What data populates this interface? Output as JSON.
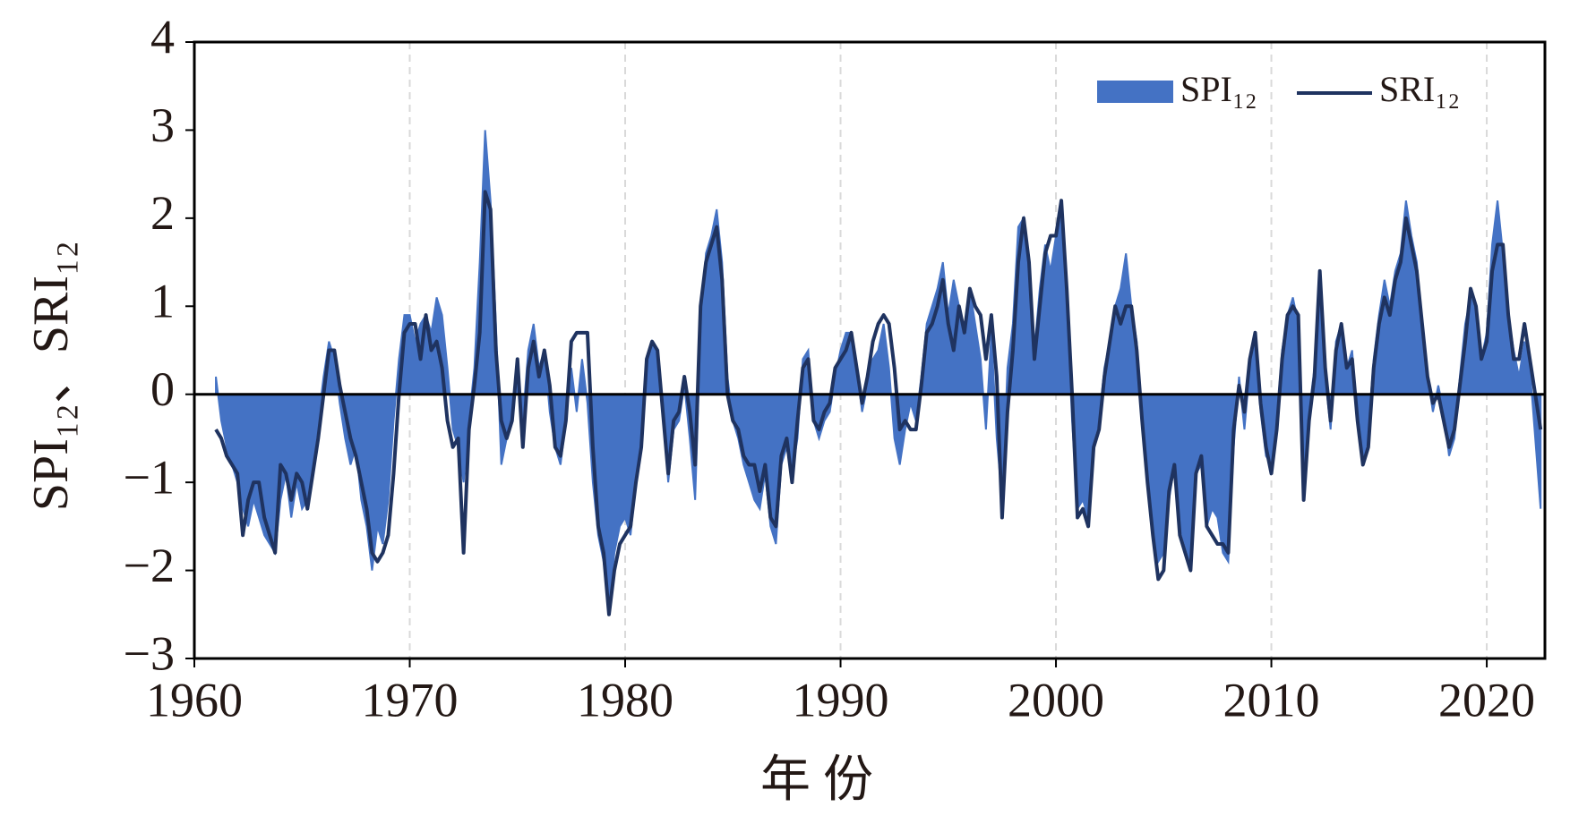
{
  "chart_data": {
    "type": "area-line",
    "y_label": "SPI₁₂、SRI₁₂",
    "x_label": "年 份",
    "xlim": [
      1960,
      2022.7
    ],
    "xticks": [
      1960,
      1970,
      1980,
      1990,
      2000,
      2010,
      2020
    ],
    "ylim": [
      -3,
      4
    ],
    "yticks": [
      {
        "value": -3,
        "label": "−3"
      },
      {
        "value": -2,
        "label": "−2"
      },
      {
        "value": -1,
        "label": "−1"
      },
      0,
      1,
      2,
      3,
      4
    ],
    "grid": true,
    "x": [
      1961,
      1961.25,
      1961.5,
      1961.75,
      1962,
      1962.25,
      1962.5,
      1962.75,
      1963,
      1963.25,
      1963.5,
      1963.75,
      1964,
      1964.25,
      1964.5,
      1964.75,
      1965,
      1965.25,
      1965.5,
      1965.75,
      1966,
      1966.25,
      1966.5,
      1966.75,
      1967,
      1967.25,
      1967.5,
      1967.75,
      1968,
      1968.25,
      1968.5,
      1968.75,
      1969,
      1969.25,
      1969.5,
      1969.75,
      1970,
      1970.25,
      1970.5,
      1970.75,
      1971,
      1971.25,
      1971.5,
      1971.75,
      1972,
      1972.25,
      1972.5,
      1972.75,
      1973,
      1973.25,
      1973.5,
      1973.75,
      1974,
      1974.25,
      1974.5,
      1974.75,
      1975,
      1975.25,
      1975.5,
      1975.75,
      1976,
      1976.25,
      1976.5,
      1976.75,
      1977,
      1977.25,
      1977.5,
      1977.75,
      1978,
      1978.25,
      1978.5,
      1978.75,
      1979,
      1979.25,
      1979.5,
      1979.75,
      1980,
      1980.25,
      1980.5,
      1980.75,
      1981,
      1981.25,
      1981.5,
      1981.75,
      1982,
      1982.25,
      1982.5,
      1982.75,
      1983,
      1983.25,
      1983.5,
      1983.75,
      1984,
      1984.25,
      1984.5,
      1984.75,
      1985,
      1985.25,
      1985.5,
      1985.75,
      1986,
      1986.25,
      1986.5,
      1986.75,
      1987,
      1987.25,
      1987.5,
      1987.75,
      1988,
      1988.25,
      1988.5,
      1988.75,
      1989,
      1989.25,
      1989.5,
      1989.75,
      1990,
      1990.25,
      1990.5,
      1990.75,
      1991,
      1991.25,
      1991.5,
      1991.75,
      1992,
      1992.25,
      1992.5,
      1992.75,
      1993,
      1993.25,
      1993.5,
      1993.75,
      1994,
      1994.25,
      1994.5,
      1994.75,
      1995,
      1995.25,
      1995.5,
      1995.75,
      1996,
      1996.25,
      1996.5,
      1996.75,
      1997,
      1997.25,
      1997.5,
      1997.75,
      1998,
      1998.25,
      1998.5,
      1998.75,
      1999,
      1999.25,
      1999.5,
      1999.75,
      2000,
      2000.25,
      2000.5,
      2000.75,
      2001,
      2001.25,
      2001.5,
      2001.75,
      2002,
      2002.25,
      2002.5,
      2002.75,
      2003,
      2003.25,
      2003.5,
      2003.75,
      2004,
      2004.25,
      2004.5,
      2004.75,
      2005,
      2005.25,
      2005.5,
      2005.75,
      2006,
      2006.25,
      2006.5,
      2006.75,
      2007,
      2007.25,
      2007.5,
      2007.75,
      2008,
      2008.25,
      2008.5,
      2008.75,
      2009,
      2009.25,
      2009.5,
      2009.75,
      2010,
      2010.25,
      2010.5,
      2010.75,
      2011,
      2011.25,
      2011.5,
      2011.75,
      2012,
      2012.25,
      2012.5,
      2012.75,
      2013,
      2013.25,
      2013.5,
      2013.75,
      2014,
      2014.25,
      2014.5,
      2014.75,
      2015,
      2015.25,
      2015.5,
      2015.75,
      2016,
      2016.25,
      2016.5,
      2016.75,
      2017,
      2017.25,
      2017.5,
      2017.75,
      2018,
      2018.25,
      2018.5,
      2018.75,
      2019,
      2019.25,
      2019.5,
      2019.75,
      2020,
      2020.25,
      2020.5,
      2020.75,
      2021,
      2021.25,
      2021.5,
      2021.75,
      2022,
      2022.5
    ],
    "series": [
      {
        "name": "SPI₁₂",
        "color": "#4472c4",
        "values": [
          0.2,
          -0.3,
          -0.6,
          -0.8,
          -1.0,
          -1.3,
          -1.5,
          -1.2,
          -1.4,
          -1.6,
          -1.7,
          -1.8,
          -1.2,
          -0.9,
          -1.4,
          -1.0,
          -1.3,
          -1.2,
          -0.8,
          -0.3,
          0.2,
          0.6,
          0.4,
          -0.1,
          -0.5,
          -0.8,
          -0.6,
          -1.2,
          -1.5,
          -2.0,
          -1.5,
          -1.7,
          -1.2,
          -0.3,
          0.4,
          0.9,
          0.9,
          0.6,
          0.8,
          0.9,
          0.7,
          1.1,
          0.9,
          0.3,
          -0.4,
          -0.6,
          -1.0,
          -0.3,
          0.3,
          1.5,
          3.0,
          2.2,
          0.8,
          -0.8,
          -0.5,
          -0.2,
          0.3,
          -0.3,
          0.5,
          0.8,
          0.3,
          0.5,
          -0.2,
          -0.6,
          -0.8,
          -0.3,
          0.3,
          -0.2,
          0.4,
          -0.1,
          -1.0,
          -1.6,
          -1.9,
          -2.4,
          -1.8,
          -1.5,
          -1.4,
          -1.6,
          -1.0,
          -0.6,
          0.4,
          0.6,
          0.5,
          -0.2,
          -1.0,
          -0.4,
          -0.3,
          0.1,
          -0.5,
          -1.2,
          0.7,
          1.6,
          1.8,
          2.1,
          1.5,
          0.2,
          -0.3,
          -0.5,
          -0.8,
          -1.0,
          -1.2,
          -1.3,
          -0.9,
          -1.5,
          -1.7,
          -0.8,
          -0.6,
          -0.9,
          -0.5,
          0.4,
          0.5,
          -0.3,
          -0.5,
          -0.3,
          -0.2,
          0.2,
          0.5,
          0.7,
          0.7,
          0.3,
          -0.2,
          0.1,
          0.4,
          0.5,
          0.8,
          0.3,
          -0.5,
          -0.8,
          -0.4,
          -0.1,
          -0.3,
          0.2,
          0.8,
          1.0,
          1.2,
          1.5,
          0.9,
          1.3,
          1.0,
          0.6,
          1.2,
          0.8,
          0.4,
          -0.4,
          0.7,
          -0.5,
          -1.2,
          0.3,
          0.8,
          1.9,
          2.0,
          1.4,
          0.5,
          1.2,
          1.7,
          1.4,
          1.8,
          2.0,
          1.0,
          -0.3,
          -1.3,
          -1.2,
          -1.4,
          -0.5,
          -0.3,
          0.3,
          0.6,
          1.0,
          1.2,
          1.6,
          1.0,
          0.6,
          -0.3,
          -0.8,
          -1.4,
          -1.9,
          -1.8,
          -1.2,
          -0.8,
          -1.5,
          -1.7,
          -1.9,
          -0.9,
          -0.8,
          -1.5,
          -1.3,
          -1.4,
          -1.8,
          -1.9,
          -0.6,
          0.2,
          -0.4,
          0.3,
          0.6,
          -0.2,
          -0.7,
          -0.8,
          -0.3,
          0.5,
          0.9,
          1.1,
          0.8,
          -0.9,
          -0.2,
          0.3,
          1.4,
          0.2,
          -0.4,
          0.6,
          0.8,
          0.3,
          0.5,
          -0.3,
          -0.8,
          -0.4,
          0.4,
          0.9,
          1.3,
          1.0,
          1.4,
          1.6,
          2.2,
          1.8,
          1.5,
          0.8,
          0.2,
          -0.2,
          0.1,
          -0.2,
          -0.7,
          -0.5,
          0.2,
          0.8,
          1.1,
          0.9,
          0.4,
          0.7,
          1.7,
          2.2,
          1.6,
          0.9,
          0.5,
          0.2,
          0.6,
          0.3,
          -1.3
        ]
      },
      {
        "name": "SRI₁₂",
        "color": "#1f3360",
        "values": [
          -0.4,
          -0.5,
          -0.7,
          -0.8,
          -0.9,
          -1.6,
          -1.2,
          -1.0,
          -1.0,
          -1.4,
          -1.6,
          -1.8,
          -0.8,
          -0.9,
          -1.2,
          -0.9,
          -1.0,
          -1.3,
          -0.9,
          -0.5,
          0.0,
          0.5,
          0.5,
          0.1,
          -0.2,
          -0.5,
          -0.7,
          -1.0,
          -1.3,
          -1.8,
          -1.9,
          -1.8,
          -1.6,
          -0.9,
          0.0,
          0.7,
          0.8,
          0.8,
          0.4,
          0.9,
          0.5,
          0.6,
          0.3,
          -0.3,
          -0.6,
          -0.5,
          -1.8,
          -0.4,
          0.1,
          0.7,
          2.3,
          2.1,
          0.5,
          -0.3,
          -0.5,
          -0.3,
          0.4,
          -0.6,
          0.3,
          0.6,
          0.2,
          0.5,
          0.1,
          -0.6,
          -0.7,
          -0.3,
          0.6,
          0.7,
          0.7,
          0.7,
          -0.6,
          -1.5,
          -1.8,
          -2.5,
          -2.0,
          -1.7,
          -1.6,
          -1.5,
          -1.0,
          -0.6,
          0.4,
          0.6,
          0.5,
          -0.2,
          -0.9,
          -0.3,
          -0.2,
          0.2,
          -0.2,
          -0.8,
          1.0,
          1.5,
          1.7,
          1.9,
          1.3,
          0.0,
          -0.3,
          -0.4,
          -0.7,
          -0.8,
          -0.8,
          -1.1,
          -0.8,
          -1.4,
          -1.5,
          -0.7,
          -0.5,
          -1.0,
          -0.3,
          0.3,
          0.4,
          -0.3,
          -0.4,
          -0.2,
          -0.1,
          0.3,
          0.4,
          0.5,
          0.7,
          0.3,
          -0.1,
          0.2,
          0.6,
          0.8,
          0.9,
          0.8,
          0.3,
          -0.4,
          -0.3,
          -0.4,
          -0.4,
          0.1,
          0.7,
          0.8,
          1.0,
          1.3,
          0.8,
          0.5,
          1.0,
          0.7,
          1.2,
          1.0,
          0.9,
          0.4,
          0.9,
          0.2,
          -1.4,
          -0.2,
          0.5,
          1.5,
          2.0,
          1.5,
          0.4,
          1.0,
          1.6,
          1.8,
          1.8,
          2.2,
          1.2,
          0.0,
          -1.4,
          -1.3,
          -1.5,
          -0.6,
          -0.4,
          0.2,
          0.6,
          1.0,
          0.8,
          1.0,
          1.0,
          0.5,
          -0.3,
          -1.0,
          -1.6,
          -2.1,
          -2.0,
          -1.1,
          -0.8,
          -1.6,
          -1.8,
          -2.0,
          -0.9,
          -0.7,
          -1.5,
          -1.6,
          -1.7,
          -1.7,
          -1.8,
          -0.4,
          0.1,
          -0.2,
          0.4,
          0.7,
          -0.1,
          -0.6,
          -0.9,
          -0.4,
          0.4,
          0.9,
          1.0,
          0.9,
          -1.2,
          -0.3,
          0.2,
          1.4,
          0.3,
          -0.3,
          0.5,
          0.8,
          0.3,
          0.4,
          -0.3,
          -0.8,
          -0.6,
          0.3,
          0.8,
          1.1,
          0.9,
          1.3,
          1.5,
          2.0,
          1.7,
          1.4,
          0.8,
          0.2,
          -0.1,
          0.0,
          -0.3,
          -0.6,
          -0.4,
          0.1,
          0.6,
          1.2,
          1.0,
          0.4,
          0.6,
          1.4,
          1.7,
          1.7,
          0.9,
          0.4,
          0.4,
          0.8,
          0.4,
          -0.4
        ]
      }
    ]
  }
}
